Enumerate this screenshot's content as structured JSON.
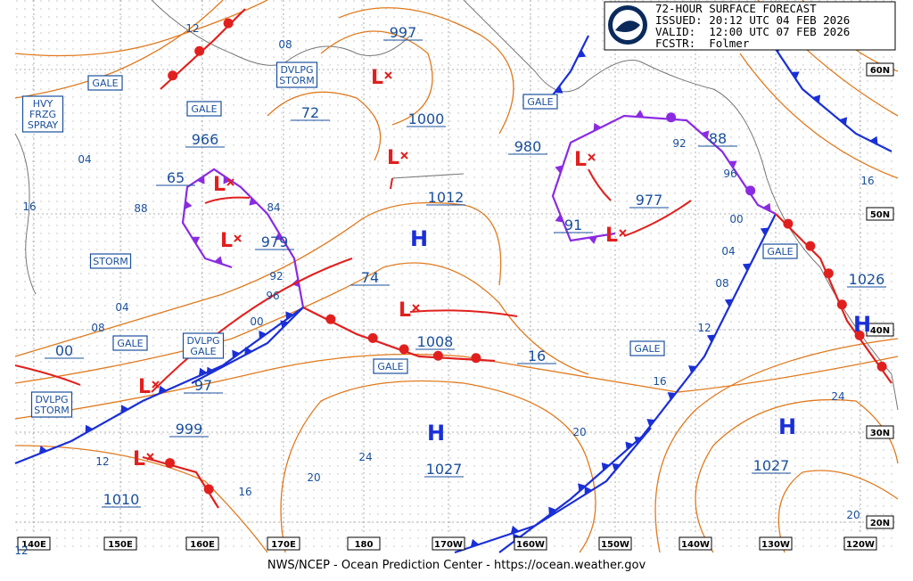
{
  "header": {
    "title": "72-HOUR SURFACE FORECAST",
    "issued": "ISSUED: 20:12 UTC 04 FEB 2026",
    "valid": "VALID:  12:00 UTC 07 FEB 2026",
    "forecaster": "FCSTR:  Folmer"
  },
  "footer": "NWS/NCEP - Ocean Prediction Center - https://ocean.weather.gov",
  "longitude_labels": [
    "140E",
    "150E",
    "160E",
    "170E",
    "180",
    "170W",
    "160W",
    "150W",
    "140W",
    "130W",
    "120W"
  ],
  "latitude_labels": [
    "60N",
    "50N",
    "40N",
    "30N",
    "20N"
  ],
  "pressure_labels": [
    "997",
    "72",
    "1000",
    "966",
    "65",
    "979",
    "74",
    "1012",
    "980",
    "977",
    "91",
    "88",
    "1008",
    "16",
    "97",
    "999",
    "1027",
    "1010",
    "1027",
    "1026",
    "00"
  ],
  "isobar_labels": [
    "12",
    "08",
    "04",
    "16",
    "88",
    "84",
    "92",
    "96",
    "00",
    "04",
    "08",
    "92",
    "96",
    "00",
    "04",
    "08",
    "12",
    "16",
    "20",
    "24",
    "20",
    "16",
    "12",
    "24",
    "20",
    "16",
    "12"
  ],
  "warning_boxes": [
    [
      "HVY",
      "FRZG",
      "SPRAY"
    ],
    [
      "GALE"
    ],
    [
      "GALE"
    ],
    [
      "DVLPG",
      "STORM"
    ],
    [
      "GALE"
    ],
    [
      "STORM"
    ],
    [
      "GALE"
    ],
    [
      "DVLPG",
      "GALE"
    ],
    [
      "GALE"
    ],
    [
      "GALE"
    ],
    [
      "GALE"
    ],
    [
      "DVLPG",
      "STORM"
    ]
  ],
  "highs": [
    "H",
    "H",
    "H",
    "H"
  ],
  "lows": [
    "L",
    "L",
    "L",
    "L",
    "L",
    "L",
    "L",
    "L",
    "L"
  ]
}
